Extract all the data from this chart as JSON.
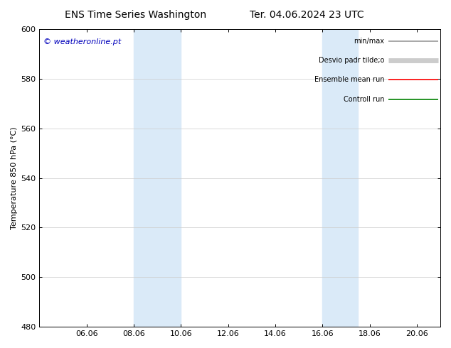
{
  "title_left": "ENS Time Series Washington",
  "title_right": "Ter. 04.06.2024 23 UTC",
  "ylabel": "Temperature 850 hPa (°C)",
  "ylim": [
    480,
    600
  ],
  "yticks": [
    480,
    500,
    520,
    540,
    560,
    580,
    600
  ],
  "xtick_labels": [
    "06.06",
    "08.06",
    "10.06",
    "12.06",
    "14.06",
    "16.06",
    "18.06",
    "20.06"
  ],
  "xtick_positions": [
    2,
    4,
    6,
    8,
    10,
    12,
    14,
    16
  ],
  "x_min": 0,
  "x_max": 17,
  "shaded_regions": [
    {
      "x_start": 4,
      "x_end": 6
    },
    {
      "x_start": 12,
      "x_end": 13.5
    }
  ],
  "shaded_color": "#daeaf8",
  "watermark_text": "© weatheronline.pt",
  "watermark_color": "#0000bb",
  "legend_entries": [
    {
      "label": "min/max",
      "color": "#999999",
      "lw": 1.2
    },
    {
      "label": "Desvio padr tilde;o",
      "color": "#cccccc",
      "lw": 5
    },
    {
      "label": "Ensemble mean run",
      "color": "#ff0000",
      "lw": 1.2
    },
    {
      "label": "Controll run",
      "color": "#008000",
      "lw": 1.2
    }
  ],
  "background_color": "#ffffff",
  "plot_bg_color": "#ffffff",
  "title_fontsize": 10,
  "ylabel_fontsize": 8,
  "tick_fontsize": 8,
  "watermark_fontsize": 8
}
